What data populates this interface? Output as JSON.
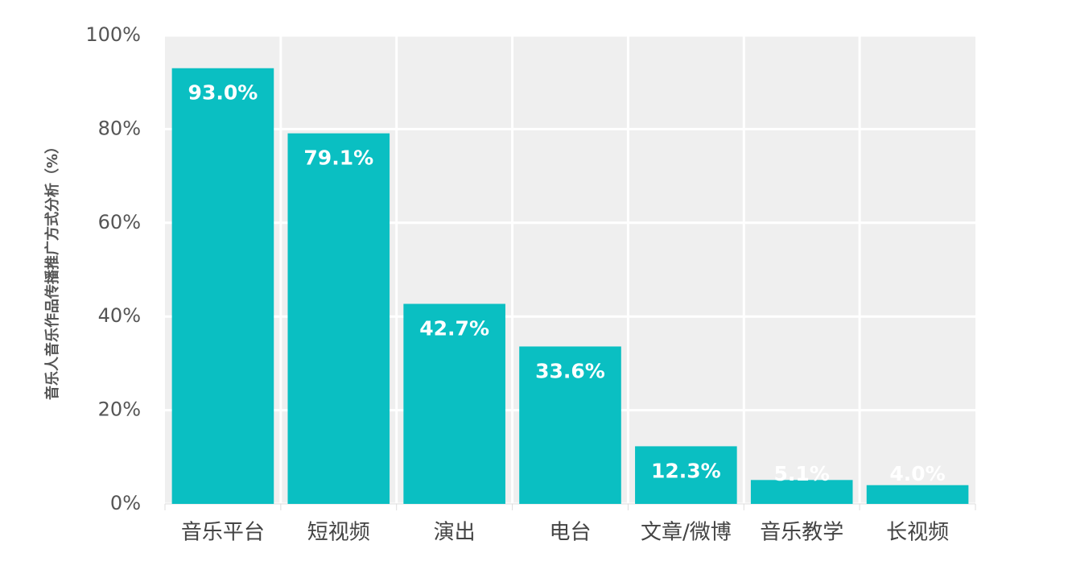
{
  "chart_data": {
    "type": "bar",
    "y_label": "音乐人音乐作品传播推广方式分析（%）",
    "categories": [
      "音乐平台",
      "短视频",
      "演出",
      "电台",
      "文章/微博",
      "音乐教学",
      "长视频"
    ],
    "values": [
      93.0,
      79.1,
      42.7,
      33.6,
      12.3,
      5.1,
      4.0
    ],
    "value_labels": [
      "93.0%",
      "79.1%",
      "42.7%",
      "33.6%",
      "12.3%",
      "5.1%",
      "4.0%"
    ],
    "color": "#0abfc2",
    "ylim": [
      0,
      100
    ],
    "yticks": [
      {
        "value": 0,
        "label": "0%"
      },
      {
        "value": 20,
        "label": "20%"
      },
      {
        "value": 40,
        "label": "40%"
      },
      {
        "value": 60,
        "label": "60%"
      },
      {
        "value": 80,
        "label": "80%"
      },
      {
        "value": 100,
        "label": "100%"
      }
    ],
    "grid": true
  }
}
